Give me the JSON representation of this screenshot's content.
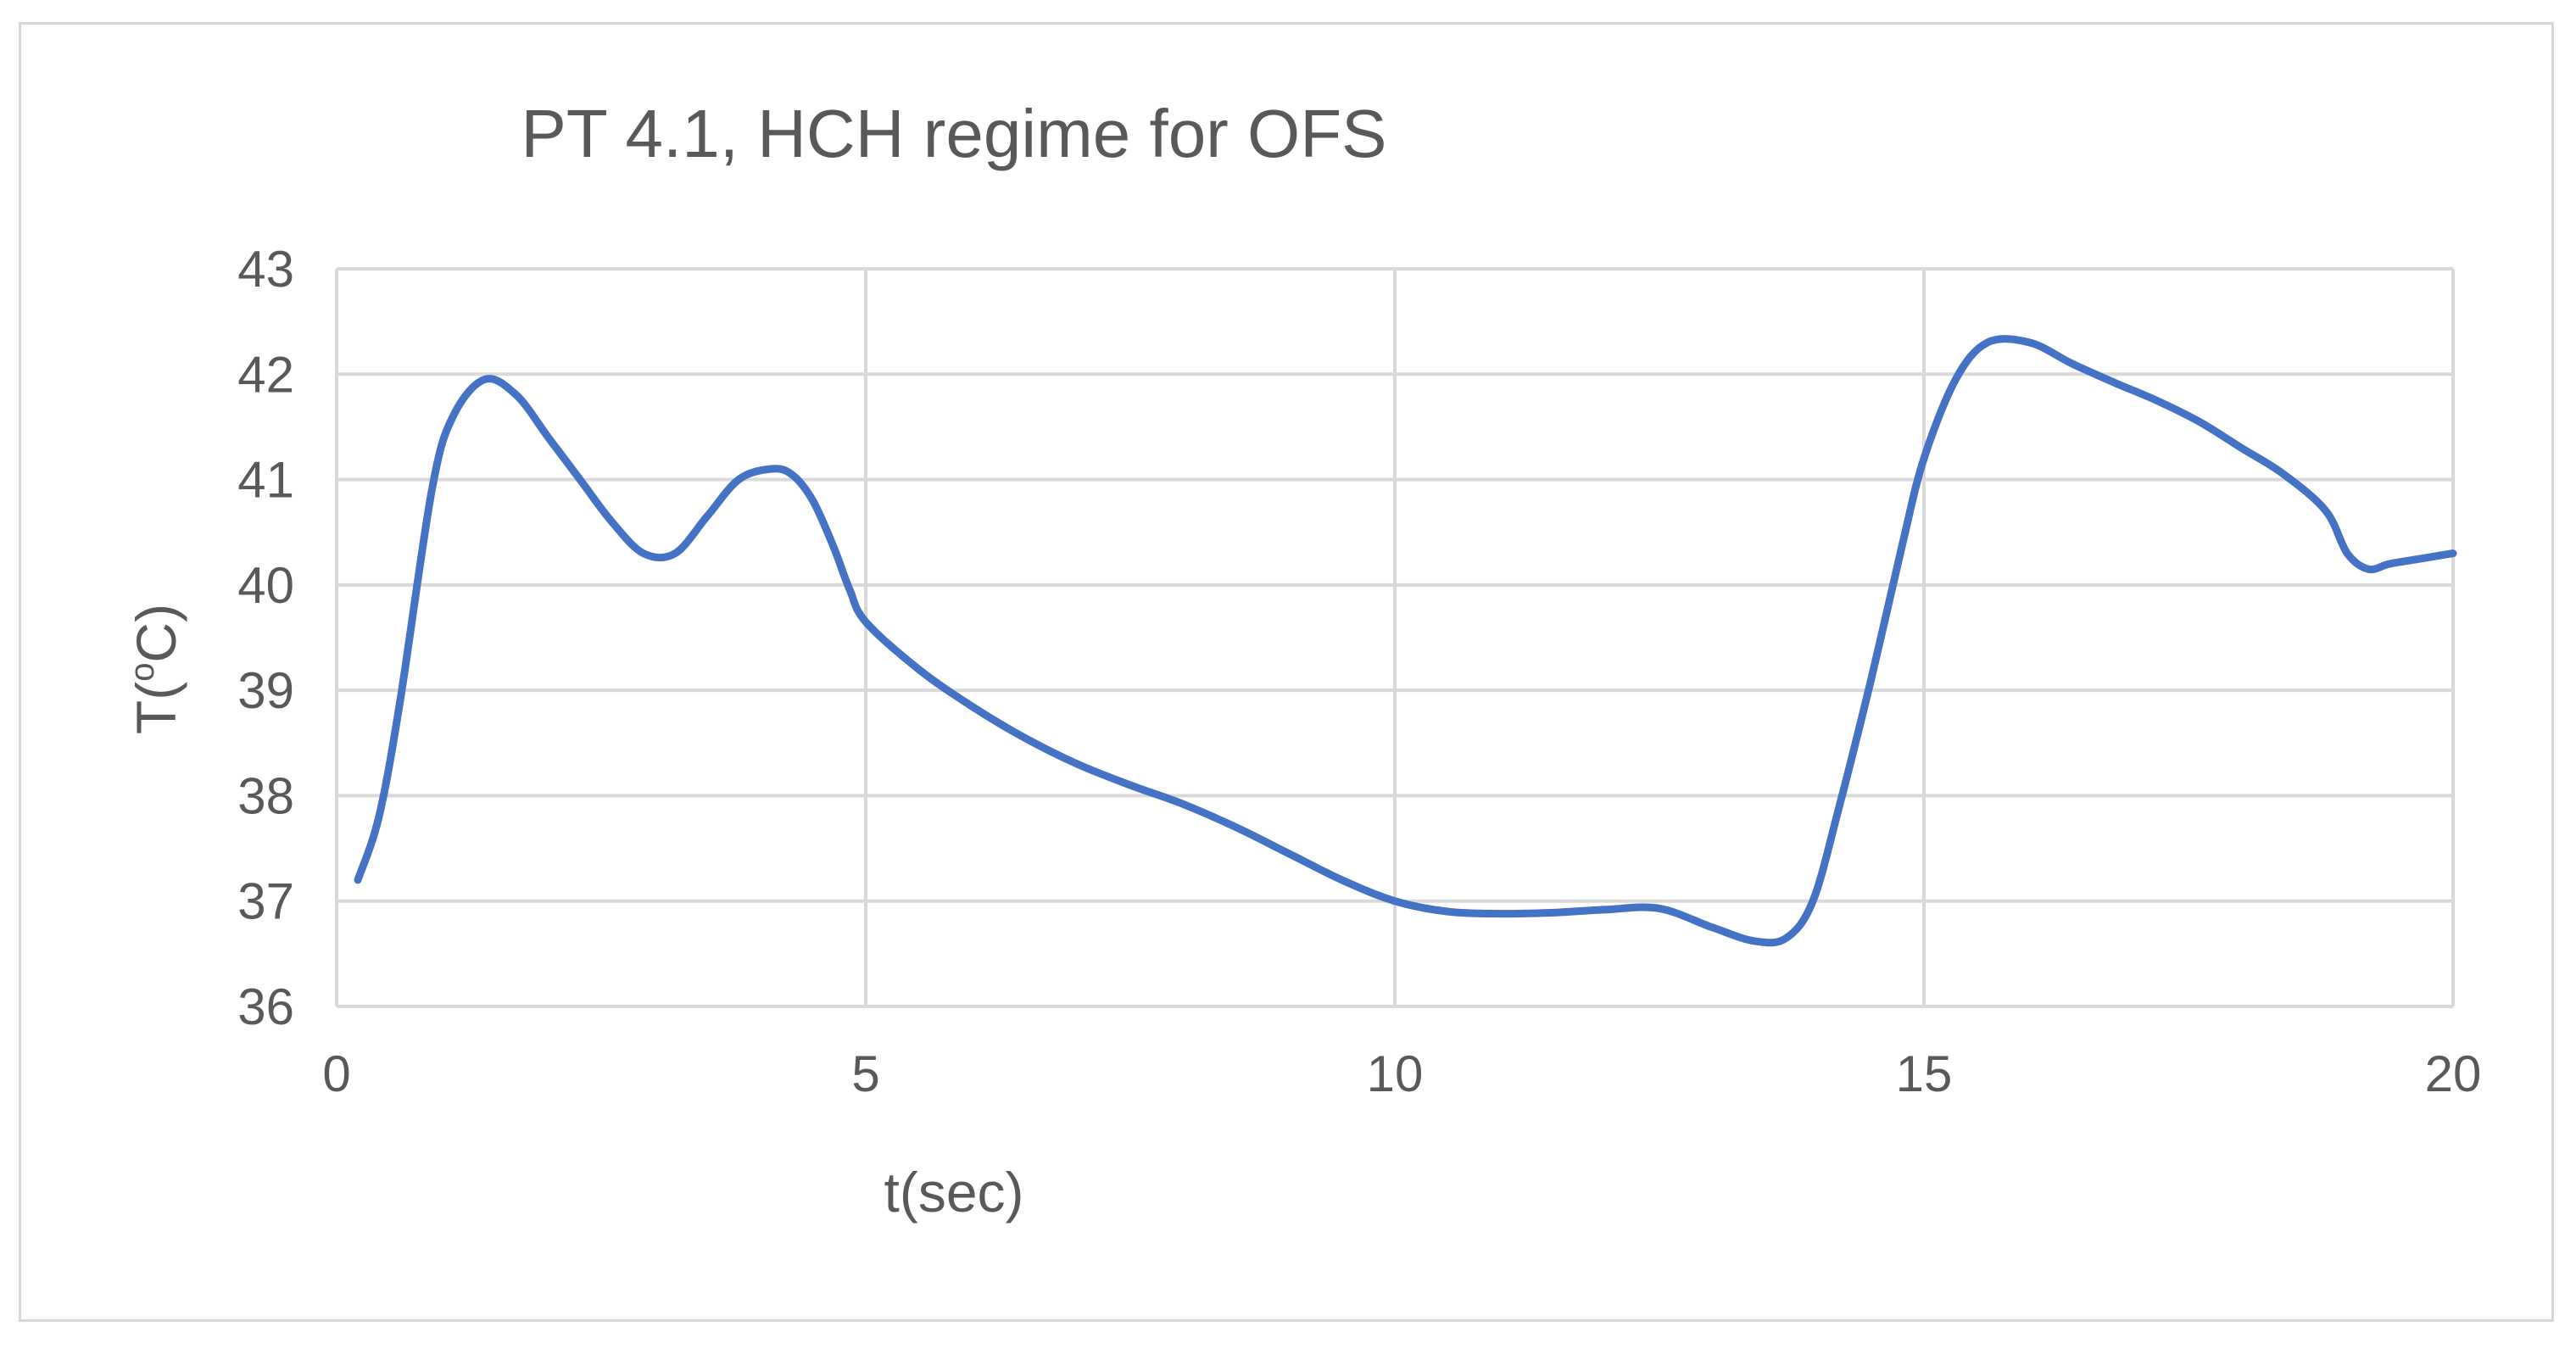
{
  "chart_data": {
    "type": "line",
    "title": "PT 4.1, HCH regime for OFS",
    "xlabel": "t(sec)",
    "ylabel_prefix": "T(",
    "ylabel_super": "o",
    "ylabel_suffix": "C)",
    "xlim": [
      0,
      20
    ],
    "ylim": [
      36,
      43
    ],
    "xticks": [
      "0",
      "5",
      "10",
      "15",
      "20"
    ],
    "yticks": [
      "36",
      "37",
      "38",
      "39",
      "40",
      "41",
      "42",
      "43"
    ],
    "grid": true,
    "legend": "none",
    "series": [
      {
        "color": "#4472c4",
        "x": [
          0.2,
          0.4,
          0.6,
          0.9,
          1.1,
          1.4,
          1.7,
          2.0,
          2.3,
          2.6,
          2.9,
          3.2,
          3.5,
          3.8,
          4.1,
          4.3,
          4.5,
          4.7,
          4.85,
          5.0,
          5.5,
          6.0,
          6.5,
          7.0,
          7.5,
          8.0,
          8.5,
          9.0,
          9.5,
          10.0,
          10.5,
          11.0,
          11.5,
          12.0,
          12.5,
          13.0,
          13.4,
          13.7,
          13.95,
          14.2,
          14.5,
          14.8,
          15.0,
          15.3,
          15.6,
          16.0,
          16.4,
          16.8,
          17.2,
          17.6,
          18.0,
          18.4,
          18.8,
          19.0,
          19.2,
          19.4,
          19.7,
          20.0
        ],
        "y": [
          37.2,
          37.8,
          38.9,
          40.9,
          41.6,
          41.95,
          41.8,
          41.4,
          41.0,
          40.6,
          40.3,
          40.3,
          40.65,
          41.0,
          41.1,
          41.05,
          40.8,
          40.35,
          39.95,
          39.65,
          39.2,
          38.85,
          38.55,
          38.3,
          38.1,
          37.92,
          37.7,
          37.45,
          37.2,
          37.0,
          36.9,
          36.88,
          36.89,
          36.92,
          36.93,
          36.75,
          36.62,
          36.65,
          37.0,
          37.9,
          39.1,
          40.4,
          41.2,
          41.95,
          42.3,
          42.3,
          42.1,
          41.92,
          41.75,
          41.55,
          41.3,
          41.05,
          40.7,
          40.3,
          40.15,
          40.2,
          40.25,
          40.3
        ]
      }
    ]
  }
}
